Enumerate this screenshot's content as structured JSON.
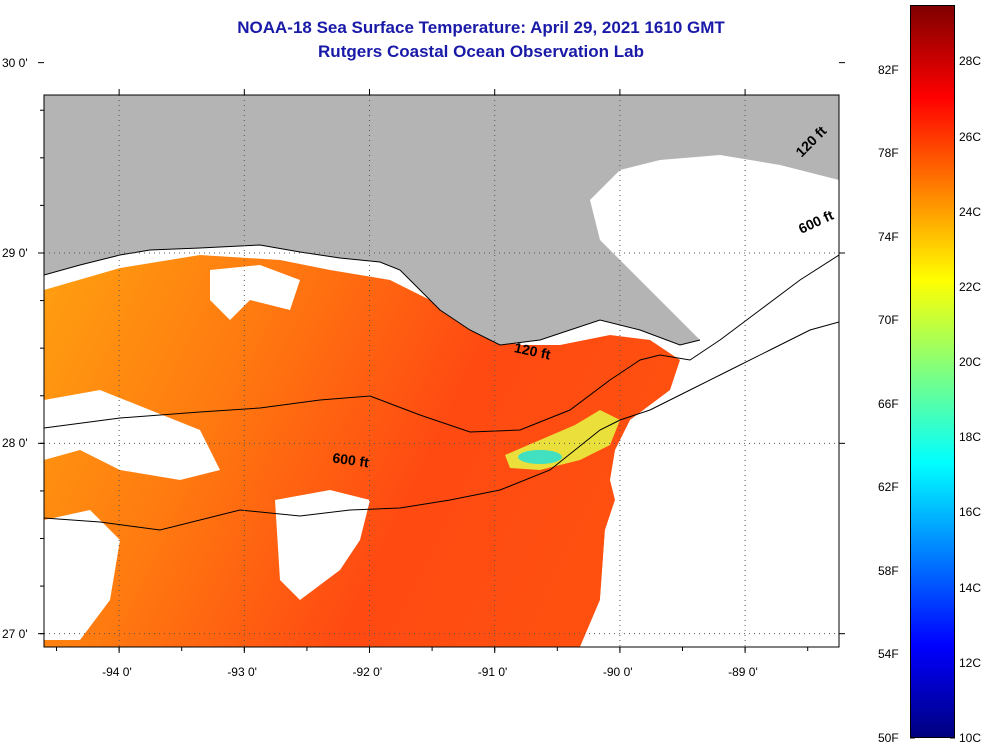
{
  "title": "NOAA-18 Sea Surface Temperature:  April 29, 2021 1610 GMT",
  "subtitle": "Rutgers Coastal Ocean Observation Lab",
  "map": {
    "lon_range": [
      -94.6,
      -88.25
    ],
    "lat_range": [
      26.93,
      29.83
    ],
    "lon_ticks": [
      {
        "value": -94,
        "label": "-94 0'"
      },
      {
        "value": -93,
        "label": "-93 0'"
      },
      {
        "value": -92,
        "label": "-92 0'"
      },
      {
        "value": -91,
        "label": "-91 0'"
      },
      {
        "value": -90,
        "label": "-90 0'"
      },
      {
        "value": -89,
        "label": "-89 0'"
      }
    ],
    "lat_ticks": [
      {
        "value": 30,
        "label": "30 0'"
      },
      {
        "value": 29,
        "label": "29 0'"
      },
      {
        "value": 28,
        "label": "28 0'"
      },
      {
        "value": 27,
        "label": "27 0'"
      }
    ],
    "land_color": "#b4b4b4",
    "cloud_color": "#ffffff",
    "contour_labels": [
      {
        "text": "120 ft",
        "lon": -90.85,
        "lat": 28.48
      },
      {
        "text": "600 ft",
        "lon": -92.3,
        "lat": 27.9
      },
      {
        "text": "120 ft",
        "lon": -88.55,
        "lat": 29.5
      },
      {
        "text": "600 ft",
        "lon": -88.55,
        "lat": 29.1
      }
    ]
  },
  "colorbar": {
    "celsius_labels": [
      "28C",
      "26C",
      "24C",
      "22C",
      "20C",
      "18C",
      "16C",
      "14C",
      "12C",
      "10C"
    ],
    "fahrenheit_labels": [
      "82F",
      "78F",
      "74F",
      "70F",
      "66F",
      "62F",
      "58F",
      "54F",
      "50F"
    ],
    "range_c": [
      10,
      29.5
    ],
    "colors": [
      "#00007f",
      "#0000ff",
      "#007fff",
      "#00ffff",
      "#7fff7f",
      "#ffff00",
      "#ff7f00",
      "#ff0000",
      "#7f0000"
    ]
  }
}
